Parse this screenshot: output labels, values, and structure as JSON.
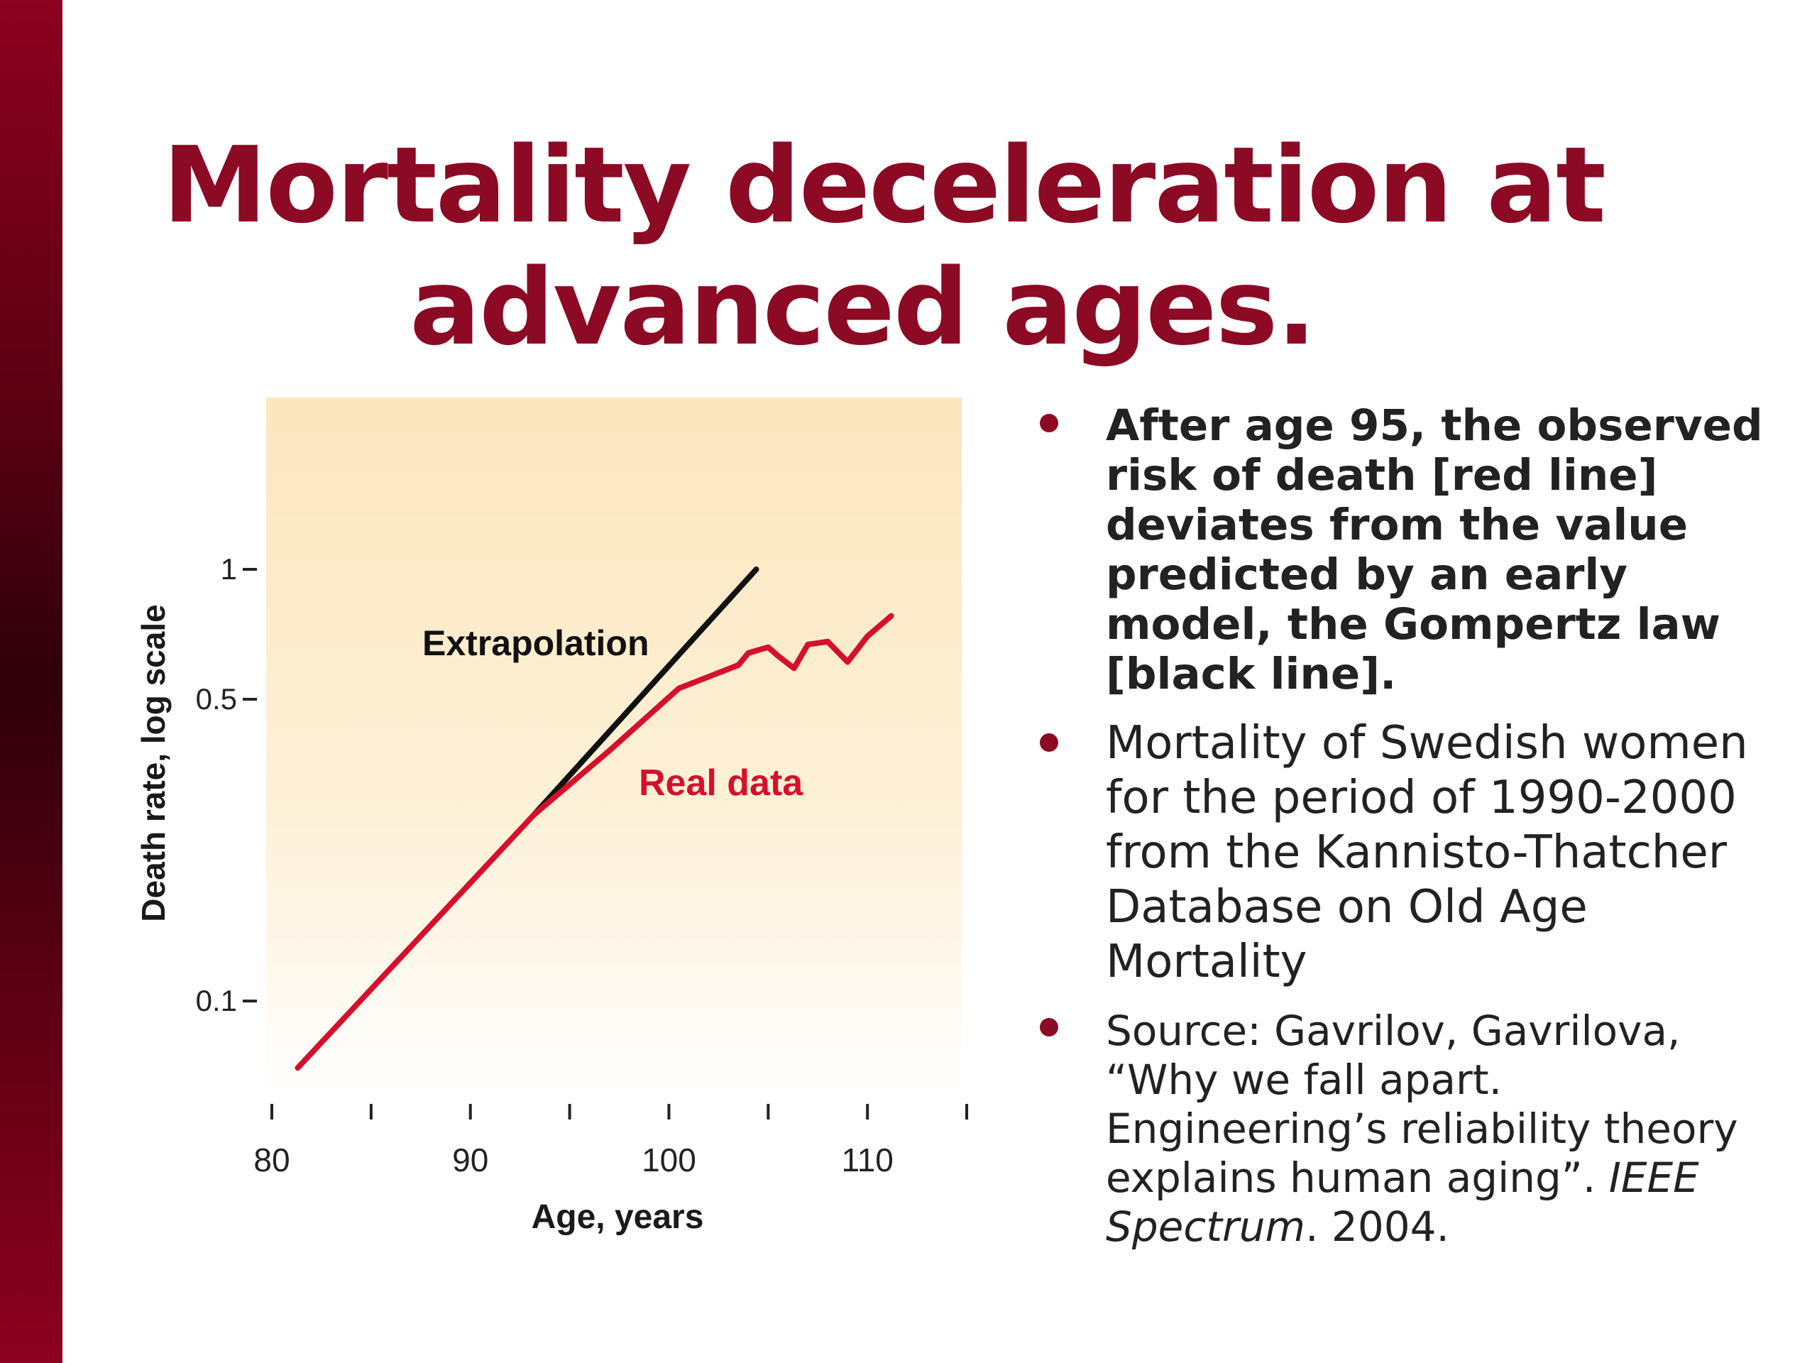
{
  "slide": {
    "title_line1": "Mortality deceleration at",
    "title_line2": "advanced ages.",
    "accent_color": "#8c0a24",
    "sidebar_color": "#6a0016"
  },
  "bullets": {
    "b1": "After age 95, the observed risk of death [red line] deviates from the value predicted by an early model, the Gompertz law [black line].",
    "b2": "Mortality of Swedish women for the period of 1990-2000 from the Kannisto-Thatcher Database on Old Age Mortality",
    "b3_pre": "Source: Gavrilov, Gavrilova, “Why we fall apart. Engineering’s reliability theory explains human aging”. ",
    "b3_italic": "IEEE Spectrum",
    "b3_post": ". 2004."
  },
  "chart_data": {
    "type": "line",
    "xlabel": "Age, years",
    "ylabel": "Death rate, log scale",
    "x_ticks": [
      80,
      85,
      90,
      95,
      100,
      105,
      110,
      115
    ],
    "x_tick_labels": [
      "80",
      "",
      "90",
      "",
      "100",
      "",
      "110",
      ""
    ],
    "y_ticks": [
      0.1,
      0.5,
      1
    ],
    "y_tick_labels": [
      "0.1",
      "0.5",
      "1"
    ],
    "xlim": [
      80,
      116
    ],
    "ylim": [
      0.06,
      2.5
    ],
    "y_scale": "log",
    "background_color": "#fdf0d0",
    "series": [
      {
        "name": "Extrapolation",
        "color": "#111111",
        "points": [
          [
            93.2,
            0.27
          ],
          [
            104.4,
            1.0
          ]
        ]
      },
      {
        "name": "Real data",
        "color": "#d5102c",
        "points": [
          [
            81.3,
            0.07
          ],
          [
            93.2,
            0.27
          ],
          [
            97,
            0.38
          ],
          [
            100.5,
            0.53
          ],
          [
            103.5,
            0.6
          ],
          [
            104,
            0.64
          ],
          [
            105,
            0.66
          ],
          [
            105.5,
            0.63
          ],
          [
            106.3,
            0.59
          ],
          [
            107,
            0.67
          ],
          [
            108,
            0.68
          ],
          [
            109,
            0.61
          ],
          [
            110,
            0.7
          ],
          [
            111.2,
            0.78
          ]
        ]
      }
    ],
    "annotations": [
      "Extrapolation",
      "Real data"
    ]
  }
}
